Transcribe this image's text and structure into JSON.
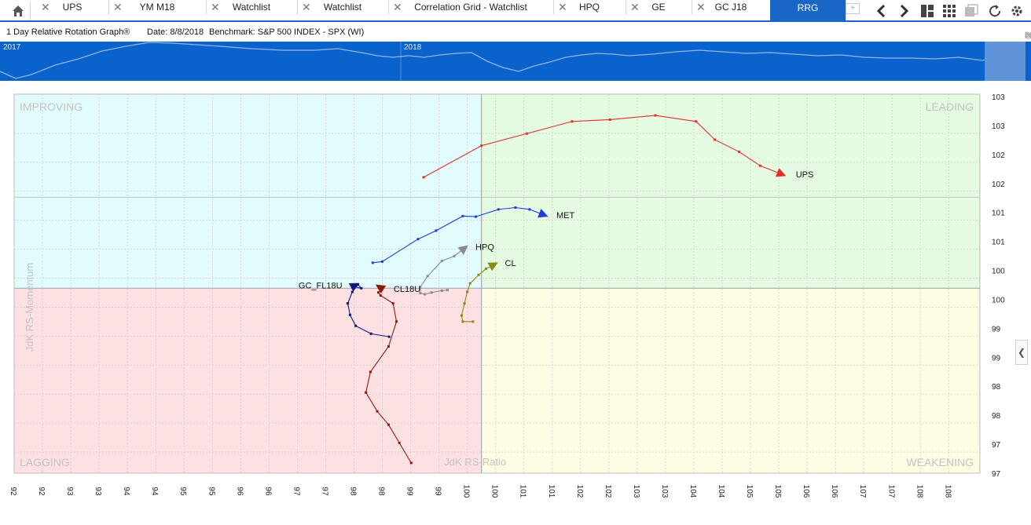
{
  "tabs": [
    {
      "label": "UPS"
    },
    {
      "label": "YM M18"
    },
    {
      "label": "Watchlist"
    },
    {
      "label": "Watchlist"
    },
    {
      "label": "Correlation Grid - Watchlist"
    },
    {
      "label": "HPQ"
    },
    {
      "label": "GE"
    },
    {
      "label": "GC J18"
    },
    {
      "label": "RRG",
      "active": true
    }
  ],
  "icons": {
    "home": "home-icon",
    "close": "close-icon",
    "add_tab": "add-tab-icon",
    "back": "chevron-left-icon",
    "forward": "chevron-right-icon",
    "layout": "layout-icon",
    "grid": "grid-icon",
    "chart": "chart-icon",
    "refresh": "refresh-icon",
    "link": "link-icon",
    "pin": "pin-icon",
    "info": "info-icon",
    "restore": "restore-icon",
    "close_panel": "close-icon",
    "collapse": "chevron-left-icon"
  },
  "header": {
    "chart_title": "1 Day Relative Rotation Graph®",
    "date_text": "Date: 8/8/2018",
    "benchmark_text": "Benchmark:  S&P 500 INDEX - SPX (WI)"
  },
  "overview": {
    "year_labels": [
      "2017",
      "2018"
    ]
  },
  "colors": {
    "improving": "#e2fbfc",
    "leading": "#e5fbe1",
    "lagging": "#fde1e2",
    "weakening": "#fcfde3",
    "UPS": "#e0302a",
    "MET": "#1f3dd6",
    "HPQ": "#8a8a8a",
    "CL": "#8b8b12",
    "GC_FL18U": "#15157a",
    "CL18U": "#8b1a10"
  },
  "chart_data": {
    "type": "scatter",
    "xlabel": "JdK RS-Ratio",
    "ylabel": "JdK RS-Momentum",
    "quadrants": [
      "IMPROVING",
      "LEADING",
      "LAGGING",
      "WEAKENING"
    ],
    "x_tick_labels": [
      "92",
      "92",
      "93",
      "93",
      "94",
      "94",
      "95",
      "95",
      "96",
      "96",
      "97",
      "97",
      "98",
      "98",
      "99",
      "99",
      "100",
      "100",
      "101",
      "101",
      "102",
      "102",
      "103",
      "103",
      "104",
      "104",
      "105",
      "105",
      "106",
      "106",
      "107",
      "107",
      "108",
      "108"
    ],
    "y_tick_labels": [
      "103",
      "103",
      "102",
      "102",
      "101",
      "101",
      "100",
      "100",
      "99",
      "99",
      "98",
      "98",
      "97",
      "97"
    ],
    "xlim": [
      91.75,
      108.8
    ],
    "ylim": [
      96.95,
      103.2
    ],
    "center": [
      100,
      100
    ],
    "grid": true,
    "series": [
      {
        "name": "UPS",
        "points": [
          [
            98.98,
            101.83
          ],
          [
            100,
            102.35
          ],
          [
            100.8,
            102.55
          ],
          [
            101.6,
            102.75
          ],
          [
            102.27,
            102.78
          ],
          [
            103.07,
            102.85
          ],
          [
            103.79,
            102.75
          ],
          [
            104.12,
            102.45
          ],
          [
            104.55,
            102.25
          ],
          [
            104.92,
            102.02
          ],
          [
            105.3,
            101.88
          ]
        ]
      },
      {
        "name": "MET",
        "points": [
          [
            98.08,
            100.42
          ],
          [
            98.25,
            100.44
          ],
          [
            98.88,
            100.81
          ],
          [
            99.2,
            100.95
          ],
          [
            99.67,
            101.19
          ],
          [
            99.9,
            101.18
          ],
          [
            100.3,
            101.3
          ],
          [
            100.6,
            101.33
          ],
          [
            100.85,
            101.3
          ],
          [
            101.1,
            101.21
          ]
        ]
      },
      {
        "name": "HPQ",
        "points": [
          [
            99.4,
            99.97
          ],
          [
            99.3,
            99.96
          ],
          [
            99.12,
            99.93
          ],
          [
            99.0,
            99.9
          ],
          [
            98.92,
            99.92
          ],
          [
            98.92,
            100.02
          ],
          [
            99.05,
            100.2
          ],
          [
            99.3,
            100.45
          ],
          [
            99.52,
            100.53
          ],
          [
            99.7,
            100.66
          ]
        ]
      },
      {
        "name": "CL",
        "points": [
          [
            99.85,
            99.45
          ],
          [
            99.67,
            99.45
          ],
          [
            99.65,
            99.55
          ],
          [
            99.7,
            99.75
          ],
          [
            99.75,
            99.94
          ],
          [
            99.8,
            100.08
          ],
          [
            99.95,
            100.22
          ],
          [
            100.08,
            100.32
          ],
          [
            100.22,
            100.39
          ]
        ]
      },
      {
        "name": "GC_FL18U",
        "points": [
          [
            98.37,
            99.2
          ],
          [
            98.05,
            99.25
          ],
          [
            97.78,
            99.38
          ],
          [
            97.68,
            99.56
          ],
          [
            97.64,
            99.75
          ],
          [
            97.72,
            99.94
          ],
          [
            97.82,
            100.06
          ],
          [
            97.88,
            100.0
          ],
          [
            97.73,
            100.03
          ],
          [
            97.77,
            100.05
          ]
        ]
      },
      {
        "name": "CL18U",
        "points": [
          [
            98.76,
            97.12
          ],
          [
            98.55,
            97.45
          ],
          [
            98.36,
            97.75
          ],
          [
            98.16,
            97.97
          ],
          [
            97.96,
            98.28
          ],
          [
            98.04,
            98.62
          ],
          [
            98.36,
            99.04
          ],
          [
            98.5,
            99.45
          ],
          [
            98.44,
            99.75
          ],
          [
            98.22,
            99.88
          ],
          [
            98.18,
            99.93
          ],
          [
            98.25,
            99.99
          ],
          [
            98.2,
            100.02
          ]
        ]
      }
    ]
  }
}
